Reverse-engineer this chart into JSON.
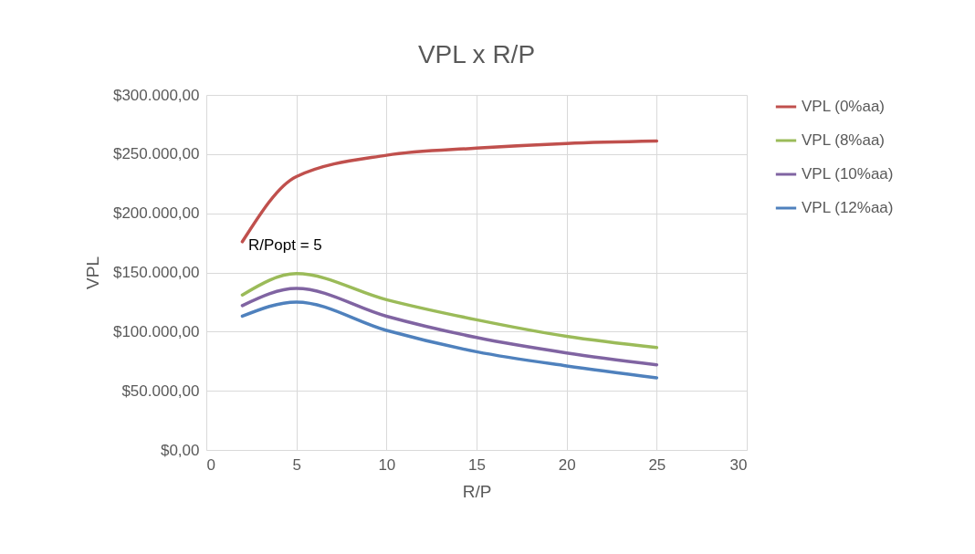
{
  "chart_data": {
    "type": "line",
    "title": "VPL x R/P",
    "xlabel": "R/P",
    "ylabel": "VPL",
    "x": [
      2,
      5,
      10,
      15,
      20,
      25
    ],
    "series": [
      {
        "name": "VPL (0%aa)",
        "color": "#c0504d",
        "values": [
          176000,
          231000,
          249000,
          255000,
          259000,
          261000
        ]
      },
      {
        "name": "VPL (8%aa)",
        "color": "#9bbb59",
        "values": [
          131000,
          149000,
          127000,
          110000,
          96000,
          86500
        ]
      },
      {
        "name": "VPL (10%aa)",
        "color": "#8064a2",
        "values": [
          122000,
          136500,
          113000,
          95000,
          82000,
          72000
        ]
      },
      {
        "name": "VPL (12%aa)",
        "color": "#4f81bd",
        "values": [
          113000,
          125000,
          101000,
          83000,
          71000,
          61000
        ]
      }
    ],
    "xlim": [
      0,
      30
    ],
    "xticks": [
      0,
      5,
      10,
      15,
      20,
      25,
      30
    ],
    "ylim": [
      0,
      300000
    ],
    "yticks": [
      {
        "value": 0,
        "label": "$0,00"
      },
      {
        "value": 50000,
        "label": "$50.000,00"
      },
      {
        "value": 100000,
        "label": "$100.000,00"
      },
      {
        "value": 150000,
        "label": "$150.000,00"
      },
      {
        "value": 200000,
        "label": "$200.000,00"
      },
      {
        "value": 250000,
        "label": "$250.000,00"
      },
      {
        "value": 300000,
        "label": "$300.000,00"
      }
    ],
    "annotations": [
      "R/Popt = 5"
    ],
    "grid": true,
    "legend": "right",
    "marker": "none",
    "line_style": "solid"
  }
}
